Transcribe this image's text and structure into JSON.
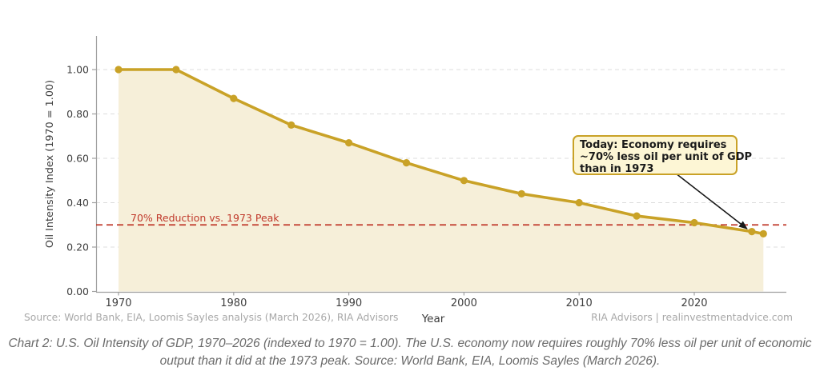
{
  "chart_data": {
    "type": "area",
    "title": "",
    "xlabel": "Year",
    "ylabel": "Oil Intensity Index (1970 = 1.00)",
    "x": [
      1970,
      1975,
      1980,
      1985,
      1990,
      1995,
      2000,
      2005,
      2010,
      2015,
      2020,
      2025,
      2026
    ],
    "values": [
      1.0,
      1.0,
      0.87,
      0.75,
      0.67,
      0.58,
      0.5,
      0.44,
      0.4,
      0.34,
      0.31,
      0.27,
      0.26
    ],
    "x_ticks": [
      1970,
      1980,
      1990,
      2000,
      2010,
      2020
    ],
    "y_ticks": {
      "values": [
        0.0,
        0.2,
        0.4,
        0.6,
        0.8,
        1.0
      ],
      "labels": [
        "0.00",
        "0.20",
        "0.40",
        "0.60",
        "0.80",
        "1.00"
      ]
    },
    "xlim": [
      1968,
      2028
    ],
    "ylim": [
      0,
      1.15
    ],
    "grid": "horizontal-dashed",
    "legend": "none",
    "line_color": "#c9a227",
    "fill_color": "#f6efd9",
    "axis_color": "#a0a0a0",
    "tick_label_color": "#3f3f3f",
    "grid_color": "#dcdcdc",
    "reference_line": {
      "value": 0.3,
      "label": "70% Reduction vs. 1973 Peak",
      "color": "#c0392b",
      "style": "dashed"
    },
    "annotation": {
      "text_lines": [
        "Today: Economy requires",
        "~70% less oil per unit of GDP",
        "than in 1973"
      ],
      "arrow_target": {
        "x": 2025,
        "y": 0.27
      },
      "box_fill": "#fdf6d5",
      "box_border": "#c9a227",
      "text_color": "#1a1a1a",
      "arrow_color": "#1a1a1a"
    }
  },
  "footer": {
    "source_note": "Source: World Bank, EIA, Loomis Sayles analysis (March 2026), RIA Advisors",
    "brand_credit": "RIA Advisors | realinvestmentadvice.com"
  },
  "caption": "Chart 2: U.S. Oil Intensity of GDP, 1970–2026 (indexed to 1970 = 1.00). The U.S. economy now requires roughly 70% less oil per unit of economic output than it did at the 1973 peak. Source: World Bank, EIA, Loomis Sayles (March 2026)."
}
